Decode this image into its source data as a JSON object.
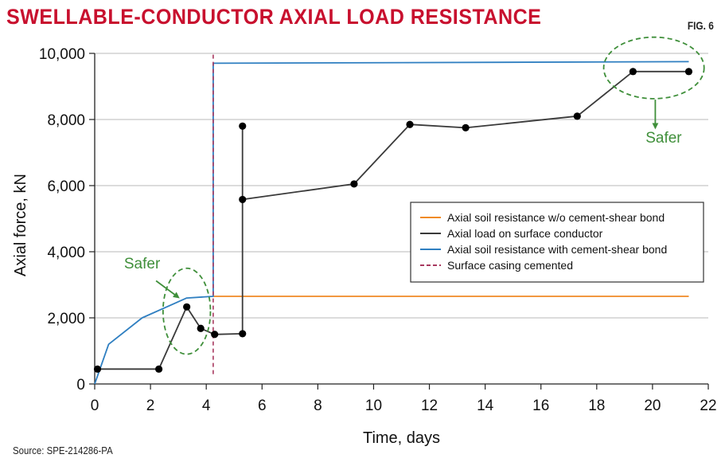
{
  "header": {
    "title": "SWELLABLE-CONDUCTOR AXIAL LOAD RESISTANCE",
    "fig_label": "FIG. 6"
  },
  "source": "Source: SPE-214286-PA",
  "chart_data": {
    "type": "line",
    "xlabel": "Time, days",
    "ylabel": "Axial force, kN",
    "xlim": [
      0,
      22
    ],
    "ylim": [
      0,
      10000
    ],
    "x_ticks": [
      0,
      2,
      4,
      6,
      8,
      10,
      12,
      14,
      16,
      18,
      20,
      22
    ],
    "x_tick_labels": [
      "0",
      "2",
      "4",
      "6",
      "8",
      "10",
      "12",
      "14",
      "16",
      "18",
      "20",
      "22"
    ],
    "y_ticks": [
      0,
      2000,
      4000,
      6000,
      8000,
      10000
    ],
    "y_tick_labels": [
      "0",
      "2,000",
      "4,000",
      "6,000",
      "8,000",
      "10,000"
    ],
    "grid": "horizontal",
    "legend_position": "right-middle",
    "series": [
      {
        "name": "Axial soil resistance w/o cement-shear bond",
        "color": "#f08a24",
        "style": "solid",
        "x": [
          4.25,
          21.3
        ],
        "y": [
          2650,
          2650
        ]
      },
      {
        "name": "Axial load on surface conductor",
        "color": "#3a3a3a",
        "style": "solid-markers",
        "x": [
          0.1,
          2.3,
          3.3,
          3.8,
          4.3,
          5.3,
          5.3,
          5.3,
          9.3,
          11.3,
          13.3,
          17.3,
          19.3,
          21.3
        ],
        "y": [
          450,
          450,
          2330,
          1680,
          1500,
          1520,
          7800,
          5580,
          6050,
          7850,
          7750,
          8100,
          9450,
          9450
        ],
        "markers": [
          true,
          true,
          true,
          true,
          true,
          true,
          true,
          true,
          true,
          true,
          true,
          true,
          true,
          true
        ]
      },
      {
        "name": "Axial soil resistance with cement-shear bond",
        "color": "#2f7fc1",
        "style": "solid",
        "x": [
          0,
          0.5,
          1.7,
          3.3,
          4.25,
          4.25,
          21.3
        ],
        "y": [
          0,
          1200,
          2000,
          2600,
          2650,
          9700,
          9750
        ]
      },
      {
        "name": "Surface casing cemented",
        "color": "#a8385f",
        "style": "dashed",
        "x": [
          4.25,
          4.25
        ],
        "y": [
          300,
          10000
        ]
      }
    ],
    "annotations": [
      {
        "text": "Safer",
        "x": 1.7,
        "y": 3500,
        "ellipse": {
          "cx": 3.3,
          "cy": 2200,
          "rx": 0.85,
          "ry": 1300
        },
        "arrow": {
          "from": [
            2.2,
            3120
          ],
          "to": [
            3.0,
            2620
          ]
        }
      },
      {
        "text": "Safer",
        "x": 20.4,
        "y": 7300,
        "ellipse": {
          "cx": 20.05,
          "cy": 9560,
          "rx": 1.8,
          "ry": 930
        },
        "arrow": {
          "from": [
            20.1,
            8600
          ],
          "to": [
            20.1,
            7750
          ]
        }
      }
    ],
    "annotation_color": "#3f8f3a"
  }
}
